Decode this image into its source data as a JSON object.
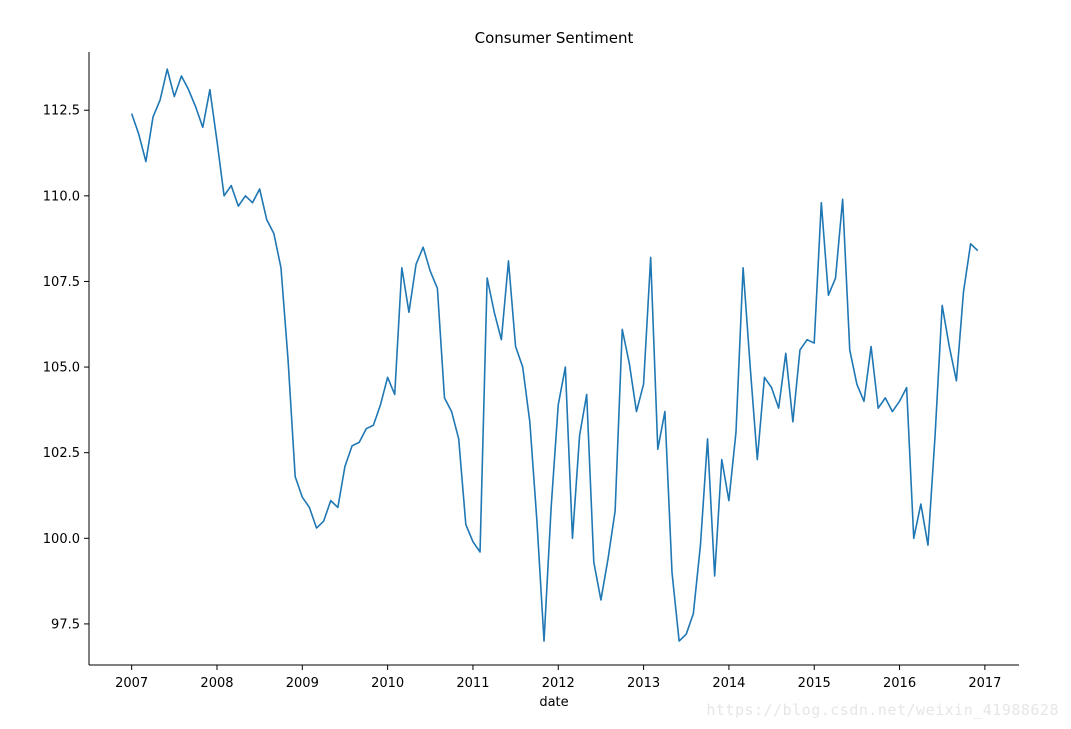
{
  "chart_data": {
    "type": "line",
    "title": "Consumer Sentiment",
    "xlabel": "date",
    "ylabel": "",
    "xlim": [
      2006.5,
      2017.4
    ],
    "ylim": [
      96.3,
      114.2
    ],
    "xticks": [
      2007,
      2008,
      2009,
      2010,
      2011,
      2012,
      2013,
      2014,
      2015,
      2016,
      2017
    ],
    "xtick_labels": [
      "2007",
      "2008",
      "2009",
      "2010",
      "2011",
      "2012",
      "2013",
      "2014",
      "2015",
      "2016",
      "2017"
    ],
    "yticks": [
      97.5,
      100.0,
      102.5,
      105.0,
      107.5,
      110.0,
      112.5
    ],
    "ytick_labels": [
      "97.5",
      "100.0",
      "102.5",
      "105.0",
      "107.5",
      "110.0",
      "112.5"
    ],
    "line_color": "#1f77b4",
    "series": [
      {
        "name": "Consumer Sentiment",
        "x_start": 2007.0,
        "x_step": 0.08333,
        "values": [
          112.4,
          111.8,
          111.0,
          112.3,
          112.8,
          113.7,
          112.9,
          113.5,
          113.1,
          112.6,
          112.0,
          113.1,
          111.6,
          110.0,
          110.3,
          109.7,
          110.0,
          109.8,
          110.2,
          109.3,
          108.9,
          107.9,
          105.2,
          101.8,
          101.2,
          100.9,
          100.3,
          100.5,
          101.1,
          100.9,
          102.1,
          102.7,
          102.8,
          103.2,
          103.3,
          103.9,
          104.7,
          104.2,
          107.9,
          106.6,
          108.0,
          108.5,
          107.8,
          107.3,
          104.1,
          103.7,
          102.9,
          100.4,
          99.9,
          99.6,
          107.6,
          106.6,
          105.8,
          108.1,
          105.6,
          105.0,
          103.4,
          100.5,
          97.0,
          100.9,
          103.9,
          105.0,
          100.0,
          103.0,
          104.2,
          99.3,
          98.2,
          99.4,
          100.8,
          106.1,
          105.1,
          103.7,
          104.5,
          108.2,
          102.6,
          103.7,
          99.0,
          97.0,
          97.2,
          97.8,
          99.8,
          102.9,
          98.9,
          102.3,
          101.1,
          103.1,
          107.9,
          105.0,
          102.3,
          104.7,
          104.4,
          103.8,
          105.4,
          103.4,
          105.5,
          105.8,
          105.7,
          109.8,
          107.1,
          107.6,
          109.9,
          105.5,
          104.5,
          104.0,
          105.6,
          103.8,
          104.1,
          103.7,
          104.0,
          104.4,
          100.0,
          101.0,
          99.8,
          103.0,
          106.8,
          105.6,
          104.6,
          107.2,
          108.6,
          108.4
        ]
      }
    ]
  },
  "watermark": "https://blog.csdn.net/weixin_41988628"
}
